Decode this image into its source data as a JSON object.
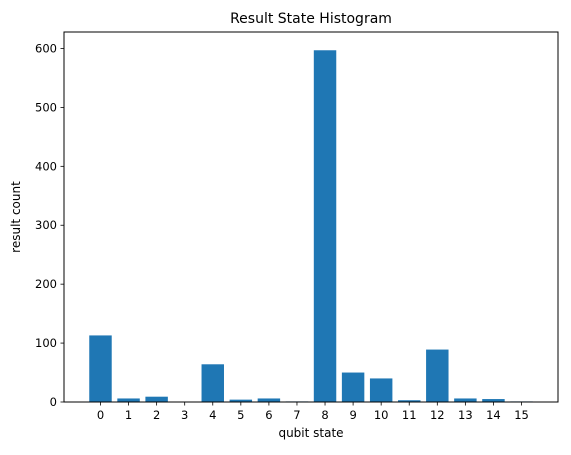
{
  "chart_data": {
    "type": "bar",
    "title": "Result State Histogram",
    "xlabel": "qubit state",
    "ylabel": "result count",
    "categories": [
      "0",
      "1",
      "2",
      "3",
      "4",
      "5",
      "6",
      "7",
      "8",
      "9",
      "10",
      "11",
      "12",
      "13",
      "14",
      "15"
    ],
    "values": [
      113,
      6,
      9,
      0,
      64,
      4,
      6,
      1,
      597,
      50,
      40,
      3,
      89,
      6,
      5,
      1
    ],
    "ylim": [
      0,
      628
    ],
    "yticks": [
      0,
      100,
      200,
      300,
      400,
      500,
      600
    ],
    "bar_color": "#1f77b4",
    "grid": false,
    "legend": "none"
  }
}
